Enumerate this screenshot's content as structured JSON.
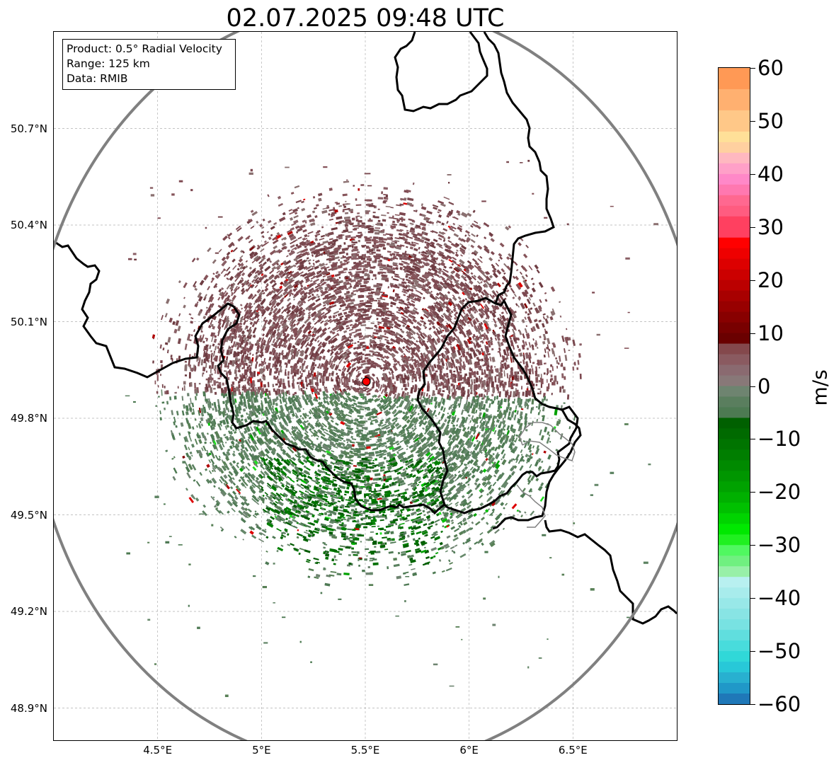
{
  "title": "02.07.2025 09:48 UTC",
  "info_box": {
    "product": "Product: 0.5° Radial Velocity",
    "range": "Range: 125 km",
    "data": "Data: RMIB"
  },
  "map": {
    "lon_range": [
      4.0,
      7.0
    ],
    "lat_range": [
      48.8,
      51.0
    ],
    "radar_site": {
      "lon": 5.505,
      "lat": 49.914
    },
    "range_km": 125,
    "range_ring_color": "#808080",
    "border_color": "#000000",
    "minor_border_color": "#808080",
    "gridlines": true,
    "lat_ticks": [
      {
        "value": 50.7,
        "label": "50.7°N"
      },
      {
        "value": 50.4,
        "label": "50.4°N"
      },
      {
        "value": 50.1,
        "label": "50.1°N"
      },
      {
        "value": 49.8,
        "label": "49.8°N"
      },
      {
        "value": 49.5,
        "label": "49.5°N"
      },
      {
        "value": 49.2,
        "label": "49.2°N"
      },
      {
        "value": 48.9,
        "label": "48.9°N"
      }
    ],
    "lon_ticks": [
      {
        "value": 4.5,
        "label": "4.5°E"
      },
      {
        "value": 5.0,
        "label": "5°E"
      },
      {
        "value": 5.5,
        "label": "5.5°E"
      },
      {
        "value": 6.0,
        "label": "6°E"
      },
      {
        "value": 6.5,
        "label": "6.5°E"
      }
    ],
    "outbound_color": "#7d4850",
    "inbound_color": "#5b8260",
    "strong_inbound_color": "#006400",
    "outbound_extent_note": "Positive radial velocities north of radar, negative (inbound) south"
  },
  "colorbar": {
    "unit": "m/s",
    "min": -60,
    "max": 60,
    "ticks": [
      {
        "value": 60,
        "label": "60"
      },
      {
        "value": 50,
        "label": "50"
      },
      {
        "value": 40,
        "label": "40"
      },
      {
        "value": 30,
        "label": "30"
      },
      {
        "value": 20,
        "label": "20"
      },
      {
        "value": 10,
        "label": "10"
      },
      {
        "value": 0,
        "label": "0"
      },
      {
        "value": -10,
        "label": "−10"
      },
      {
        "value": -20,
        "label": "−20"
      },
      {
        "value": -30,
        "label": "−30"
      },
      {
        "value": -40,
        "label": "−40"
      },
      {
        "value": -50,
        "label": "−50"
      },
      {
        "value": -60,
        "label": "−60"
      }
    ],
    "segments": [
      {
        "from": 56,
        "to": 60,
        "color": "#ff9955"
      },
      {
        "from": 52,
        "to": 56,
        "color": "#ffb070"
      },
      {
        "from": 48,
        "to": 52,
        "color": "#ffc888"
      },
      {
        "from": 46,
        "to": 48,
        "color": "#ffe098"
      },
      {
        "from": 44,
        "to": 46,
        "color": "#ffd0a0"
      },
      {
        "from": 42,
        "to": 44,
        "color": "#ffb8c0"
      },
      {
        "from": 40,
        "to": 42,
        "color": "#ffa0c8"
      },
      {
        "from": 38,
        "to": 40,
        "color": "#ff88c8"
      },
      {
        "from": 36,
        "to": 38,
        "color": "#ff78b0"
      },
      {
        "from": 34,
        "to": 36,
        "color": "#ff6890"
      },
      {
        "from": 32,
        "to": 34,
        "color": "#ff5c80"
      },
      {
        "from": 28,
        "to": 32,
        "color": "#ff4060"
      },
      {
        "from": 26,
        "to": 28,
        "color": "#ff0000"
      },
      {
        "from": 24,
        "to": 26,
        "color": "#ee0000"
      },
      {
        "from": 22,
        "to": 24,
        "color": "#dd0000"
      },
      {
        "from": 20,
        "to": 22,
        "color": "#cc0000"
      },
      {
        "from": 18,
        "to": 20,
        "color": "#bb0000"
      },
      {
        "from": 16,
        "to": 18,
        "color": "#a80000"
      },
      {
        "from": 14,
        "to": 16,
        "color": "#980000"
      },
      {
        "from": 12,
        "to": 14,
        "color": "#880000"
      },
      {
        "from": 10,
        "to": 12,
        "color": "#780000"
      },
      {
        "from": 8,
        "to": 10,
        "color": "#6a0000"
      },
      {
        "from": 6,
        "to": 8,
        "color": "#84484c"
      },
      {
        "from": 4,
        "to": 6,
        "color": "#8a5a60"
      },
      {
        "from": 2,
        "to": 4,
        "color": "#8a6a70"
      },
      {
        "from": 0,
        "to": 2,
        "color": "#887878"
      },
      {
        "from": -2,
        "to": 0,
        "color": "#6e8470"
      },
      {
        "from": -4,
        "to": -2,
        "color": "#5a7e5e"
      },
      {
        "from": -6,
        "to": -4,
        "color": "#4d7a52"
      },
      {
        "from": -8,
        "to": -6,
        "color": "#006000"
      },
      {
        "from": -10,
        "to": -8,
        "color": "#006a00"
      },
      {
        "from": -12,
        "to": -10,
        "color": "#007400"
      },
      {
        "from": -14,
        "to": -12,
        "color": "#007e00"
      },
      {
        "from": -16,
        "to": -14,
        "color": "#008a00"
      },
      {
        "from": -18,
        "to": -16,
        "color": "#009600"
      },
      {
        "from": -20,
        "to": -18,
        "color": "#00a200"
      },
      {
        "from": -22,
        "to": -20,
        "color": "#00b000"
      },
      {
        "from": -24,
        "to": -22,
        "color": "#00c000"
      },
      {
        "from": -26,
        "to": -24,
        "color": "#00d400"
      },
      {
        "from": -28,
        "to": -26,
        "color": "#00e800"
      },
      {
        "from": -30,
        "to": -28,
        "color": "#20f020"
      },
      {
        "from": -32,
        "to": -30,
        "color": "#50f860"
      },
      {
        "from": -34,
        "to": -32,
        "color": "#70f080"
      },
      {
        "from": -36,
        "to": -34,
        "color": "#98f0a8"
      },
      {
        "from": -38,
        "to": -36,
        "color": "#b8f0f0"
      },
      {
        "from": -40,
        "to": -38,
        "color": "#a8ecec"
      },
      {
        "from": -42,
        "to": -40,
        "color": "#98e8e8"
      },
      {
        "from": -44,
        "to": -42,
        "color": "#88e4e4"
      },
      {
        "from": -46,
        "to": -44,
        "color": "#78e2e2"
      },
      {
        "from": -48,
        "to": -46,
        "color": "#60dede"
      },
      {
        "from": -50,
        "to": -48,
        "color": "#48dcdc"
      },
      {
        "from": -52,
        "to": -50,
        "color": "#30d8d8"
      },
      {
        "from": -54,
        "to": -52,
        "color": "#28c8d8"
      },
      {
        "from": -56,
        "to": -54,
        "color": "#28b0d0"
      },
      {
        "from": -58,
        "to": -56,
        "color": "#2098c8"
      },
      {
        "from": -60,
        "to": -58,
        "color": "#1f78b8"
      }
    ]
  }
}
